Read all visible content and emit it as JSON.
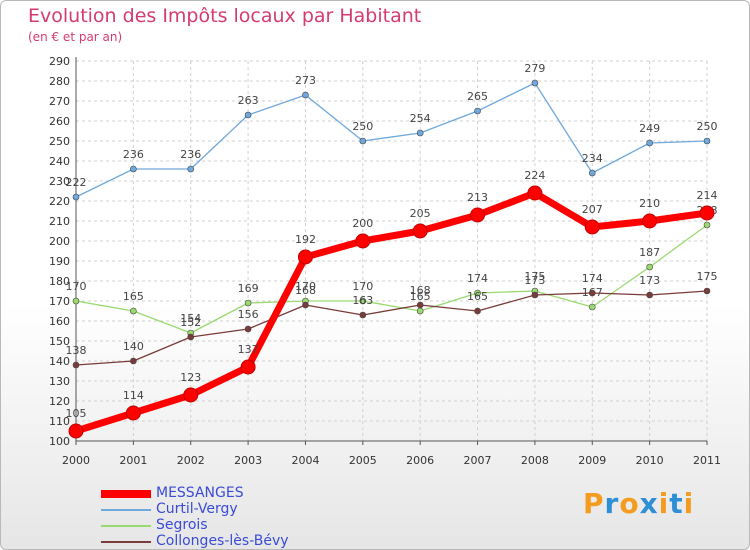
{
  "title": "Evolution des Impôts locaux par Habitant",
  "subtitle": "(en € et par an)",
  "logo": {
    "letters": [
      "P",
      "r",
      "o",
      "x",
      "i",
      "t",
      "i"
    ],
    "colors": [
      "#f39c1f",
      "#2f8fd6",
      "#f39c1f",
      "#2f8fd6",
      "#f39c1f",
      "#2f8fd6",
      "#f39c1f"
    ]
  },
  "chart_data": {
    "type": "line",
    "title": "Evolution des Impôts locaux par Habitant",
    "subtitle": "(en € et par an)",
    "x": [
      "2000",
      "2001",
      "2002",
      "2003",
      "2004",
      "2005",
      "2006",
      "2007",
      "2008",
      "2009",
      "2010",
      "2011"
    ],
    "ylim": [
      100,
      290
    ],
    "yticks": [
      100,
      110,
      120,
      130,
      140,
      150,
      160,
      170,
      180,
      190,
      200,
      210,
      220,
      230,
      240,
      250,
      260,
      270,
      280,
      290
    ],
    "grid": true,
    "legend_position": "bottom-left",
    "series": [
      {
        "name": "MESSANGES",
        "color": "#ff0000",
        "values": [
          105,
          114,
          123,
          137,
          192,
          200,
          205,
          213,
          224,
          207,
          210,
          214
        ]
      },
      {
        "name": "Curtil-Vergy",
        "color": "#6fa8dc",
        "values": [
          222,
          236,
          236,
          263,
          273,
          250,
          254,
          265,
          279,
          234,
          249,
          250
        ]
      },
      {
        "name": "Segrois",
        "color": "#9ad970",
        "values": [
          170,
          165,
          154,
          169,
          170,
          170,
          165,
          174,
          175,
          167,
          187,
          208
        ]
      },
      {
        "name": "Collonges-lès-Bévy",
        "color": "#7a3b3b",
        "values": [
          138,
          140,
          152,
          156,
          168,
          163,
          168,
          165,
          173,
          174,
          173,
          175
        ]
      }
    ]
  }
}
